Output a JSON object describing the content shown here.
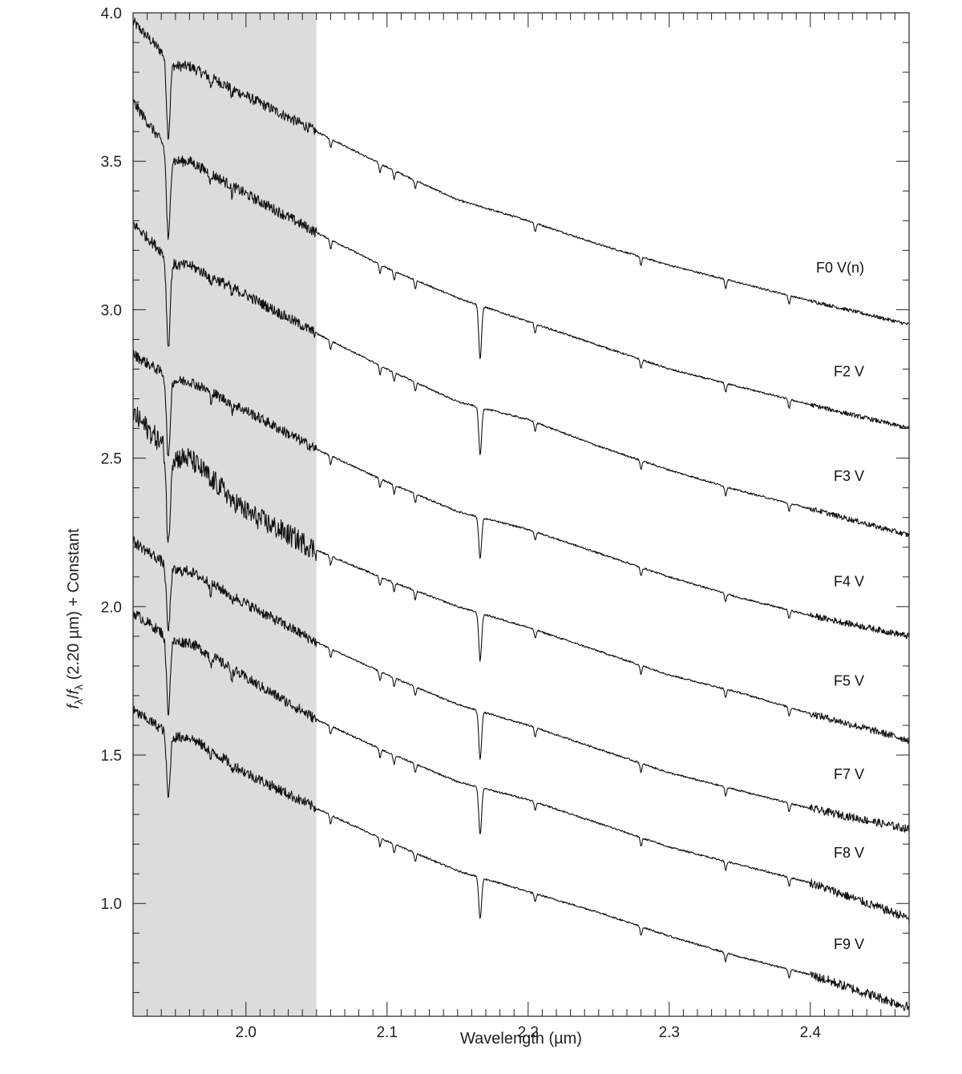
{
  "chart_data": {
    "type": "line",
    "title": "",
    "xlabel": "Wavelength (µm)",
    "ylabel": "fλ/fλ (2.20 µm) + Constant",
    "ylabel_parts": {
      "f": "f",
      "sub": "λ",
      "slash": "/",
      "rest": " (2.20 µm) + Constant"
    },
    "xlim": [
      1.92,
      2.47
    ],
    "ylim": [
      0.62,
      4.0
    ],
    "xticks": [
      2.0,
      2.1,
      2.2,
      2.3,
      2.4
    ],
    "xtick_labels": [
      "2.0",
      "2.1",
      "2.2",
      "2.3",
      "2.4"
    ],
    "yticks": [
      1.0,
      1.5,
      2.0,
      2.5,
      3.0,
      3.5,
      4.0
    ],
    "ytick_labels": [
      "1.0",
      "1.5",
      "2.0",
      "2.5",
      "3.0",
      "3.5",
      "4.0"
    ],
    "shaded_region": [
      1.92,
      2.05
    ],
    "grid": false,
    "x": [
      1.92,
      1.95,
      1.96,
      2.0,
      2.05,
      2.1,
      2.15,
      2.2,
      2.25,
      2.3,
      2.35,
      2.4,
      2.47
    ],
    "series": [
      {
        "name": "F0 V(n)",
        "values": [
          3.97,
          3.82,
          3.82,
          3.72,
          3.6,
          3.48,
          3.37,
          3.3,
          3.22,
          3.15,
          3.09,
          3.03,
          2.95
        ]
      },
      {
        "name": "F2 V",
        "values": [
          3.7,
          3.5,
          3.5,
          3.39,
          3.26,
          3.14,
          3.04,
          2.96,
          2.88,
          2.8,
          2.74,
          2.68,
          2.6
        ]
      },
      {
        "name": "F3 V",
        "values": [
          3.29,
          3.15,
          3.15,
          3.05,
          2.92,
          2.8,
          2.69,
          2.63,
          2.54,
          2.46,
          2.39,
          2.33,
          2.24
        ]
      },
      {
        "name": "F4 V",
        "values": [
          2.85,
          2.76,
          2.76,
          2.66,
          2.53,
          2.42,
          2.32,
          2.26,
          2.18,
          2.1,
          2.03,
          1.97,
          1.9
        ]
      },
      {
        "name": "F5 V",
        "values": [
          2.65,
          2.5,
          2.5,
          2.32,
          2.19,
          2.09,
          2.0,
          1.93,
          1.85,
          1.77,
          1.71,
          1.64,
          1.55
        ]
      },
      {
        "name": "F7 V",
        "values": [
          2.22,
          2.12,
          2.12,
          2.01,
          1.88,
          1.77,
          1.67,
          1.6,
          1.52,
          1.44,
          1.38,
          1.32,
          1.25
        ]
      },
      {
        "name": "F8 V",
        "values": [
          1.98,
          1.88,
          1.88,
          1.76,
          1.62,
          1.51,
          1.41,
          1.35,
          1.27,
          1.19,
          1.13,
          1.07,
          0.95
        ]
      },
      {
        "name": "F9 V",
        "values": [
          1.65,
          1.56,
          1.56,
          1.44,
          1.32,
          1.21,
          1.11,
          1.04,
          0.97,
          0.89,
          0.82,
          0.76,
          0.65
        ]
      }
    ],
    "absorption_features": [
      {
        "x": 1.945,
        "depth": [
          0.26,
          0.3,
          0.3,
          0.28,
          0.32,
          0.22,
          0.25,
          0.22
        ]
      },
      {
        "x": 2.166,
        "depth": [
          0.0,
          0.18,
          0.16,
          0.14,
          0.16,
          0.16,
          0.16,
          0.14
        ]
      }
    ]
  }
}
